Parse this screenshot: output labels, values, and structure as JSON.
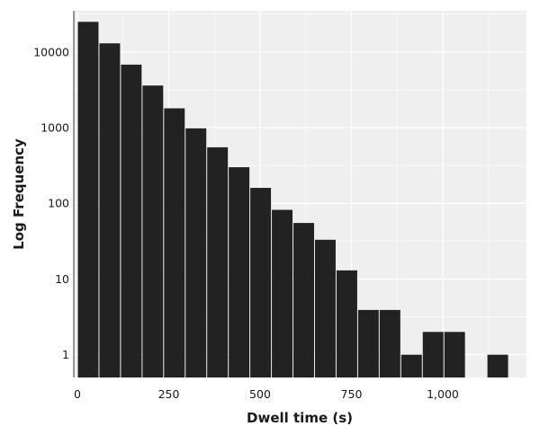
{
  "chart_data": {
    "type": "bar",
    "xlabel": "Dwell time (s)",
    "ylabel": "Log Frequency",
    "y_scale": "log10",
    "xlim": [
      0,
      1170
    ],
    "ylim": [
      0.5,
      35000
    ],
    "grid": true,
    "bin_width": 59,
    "x_ticks": [
      0,
      250,
      500,
      750,
      1000
    ],
    "x_tick_labels": [
      "0",
      "250",
      "500",
      "750",
      "1,000"
    ],
    "y_ticks": [
      1,
      10,
      100,
      1000,
      10000
    ],
    "y_tick_labels": [
      "1",
      "10",
      "100",
      "1000",
      "10000"
    ],
    "bin_starts": [
      0,
      59,
      118,
      177,
      236,
      295,
      354,
      413,
      472,
      531,
      590,
      649,
      708,
      767,
      826,
      885,
      944,
      1003,
      1062,
      1121
    ],
    "values": [
      25000,
      13000,
      6800,
      3600,
      1800,
      980,
      550,
      300,
      160,
      82,
      55,
      33,
      13,
      3.9,
      3.9,
      1,
      2,
      2,
      0,
      1
    ],
    "bar_color": "#222222",
    "panel_color": "#efefef",
    "grid_color": "#ffffff"
  }
}
